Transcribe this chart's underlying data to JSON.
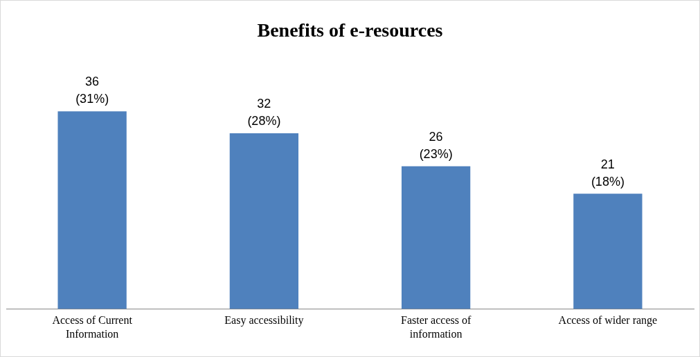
{
  "chart_data": {
    "type": "bar",
    "title": "Benefits of e-resources",
    "categories": [
      "Access of Current Information",
      "Easy accessibility",
      "Faster access of information",
      "Access of wider range"
    ],
    "values": [
      36,
      32,
      26,
      21
    ],
    "color": "#4f81bd",
    "value_labels": [
      "36\n(31%)",
      "32\n(28%)",
      "26\n(23%)",
      "21\n(18%)"
    ],
    "grid": false,
    "legend": false
  }
}
